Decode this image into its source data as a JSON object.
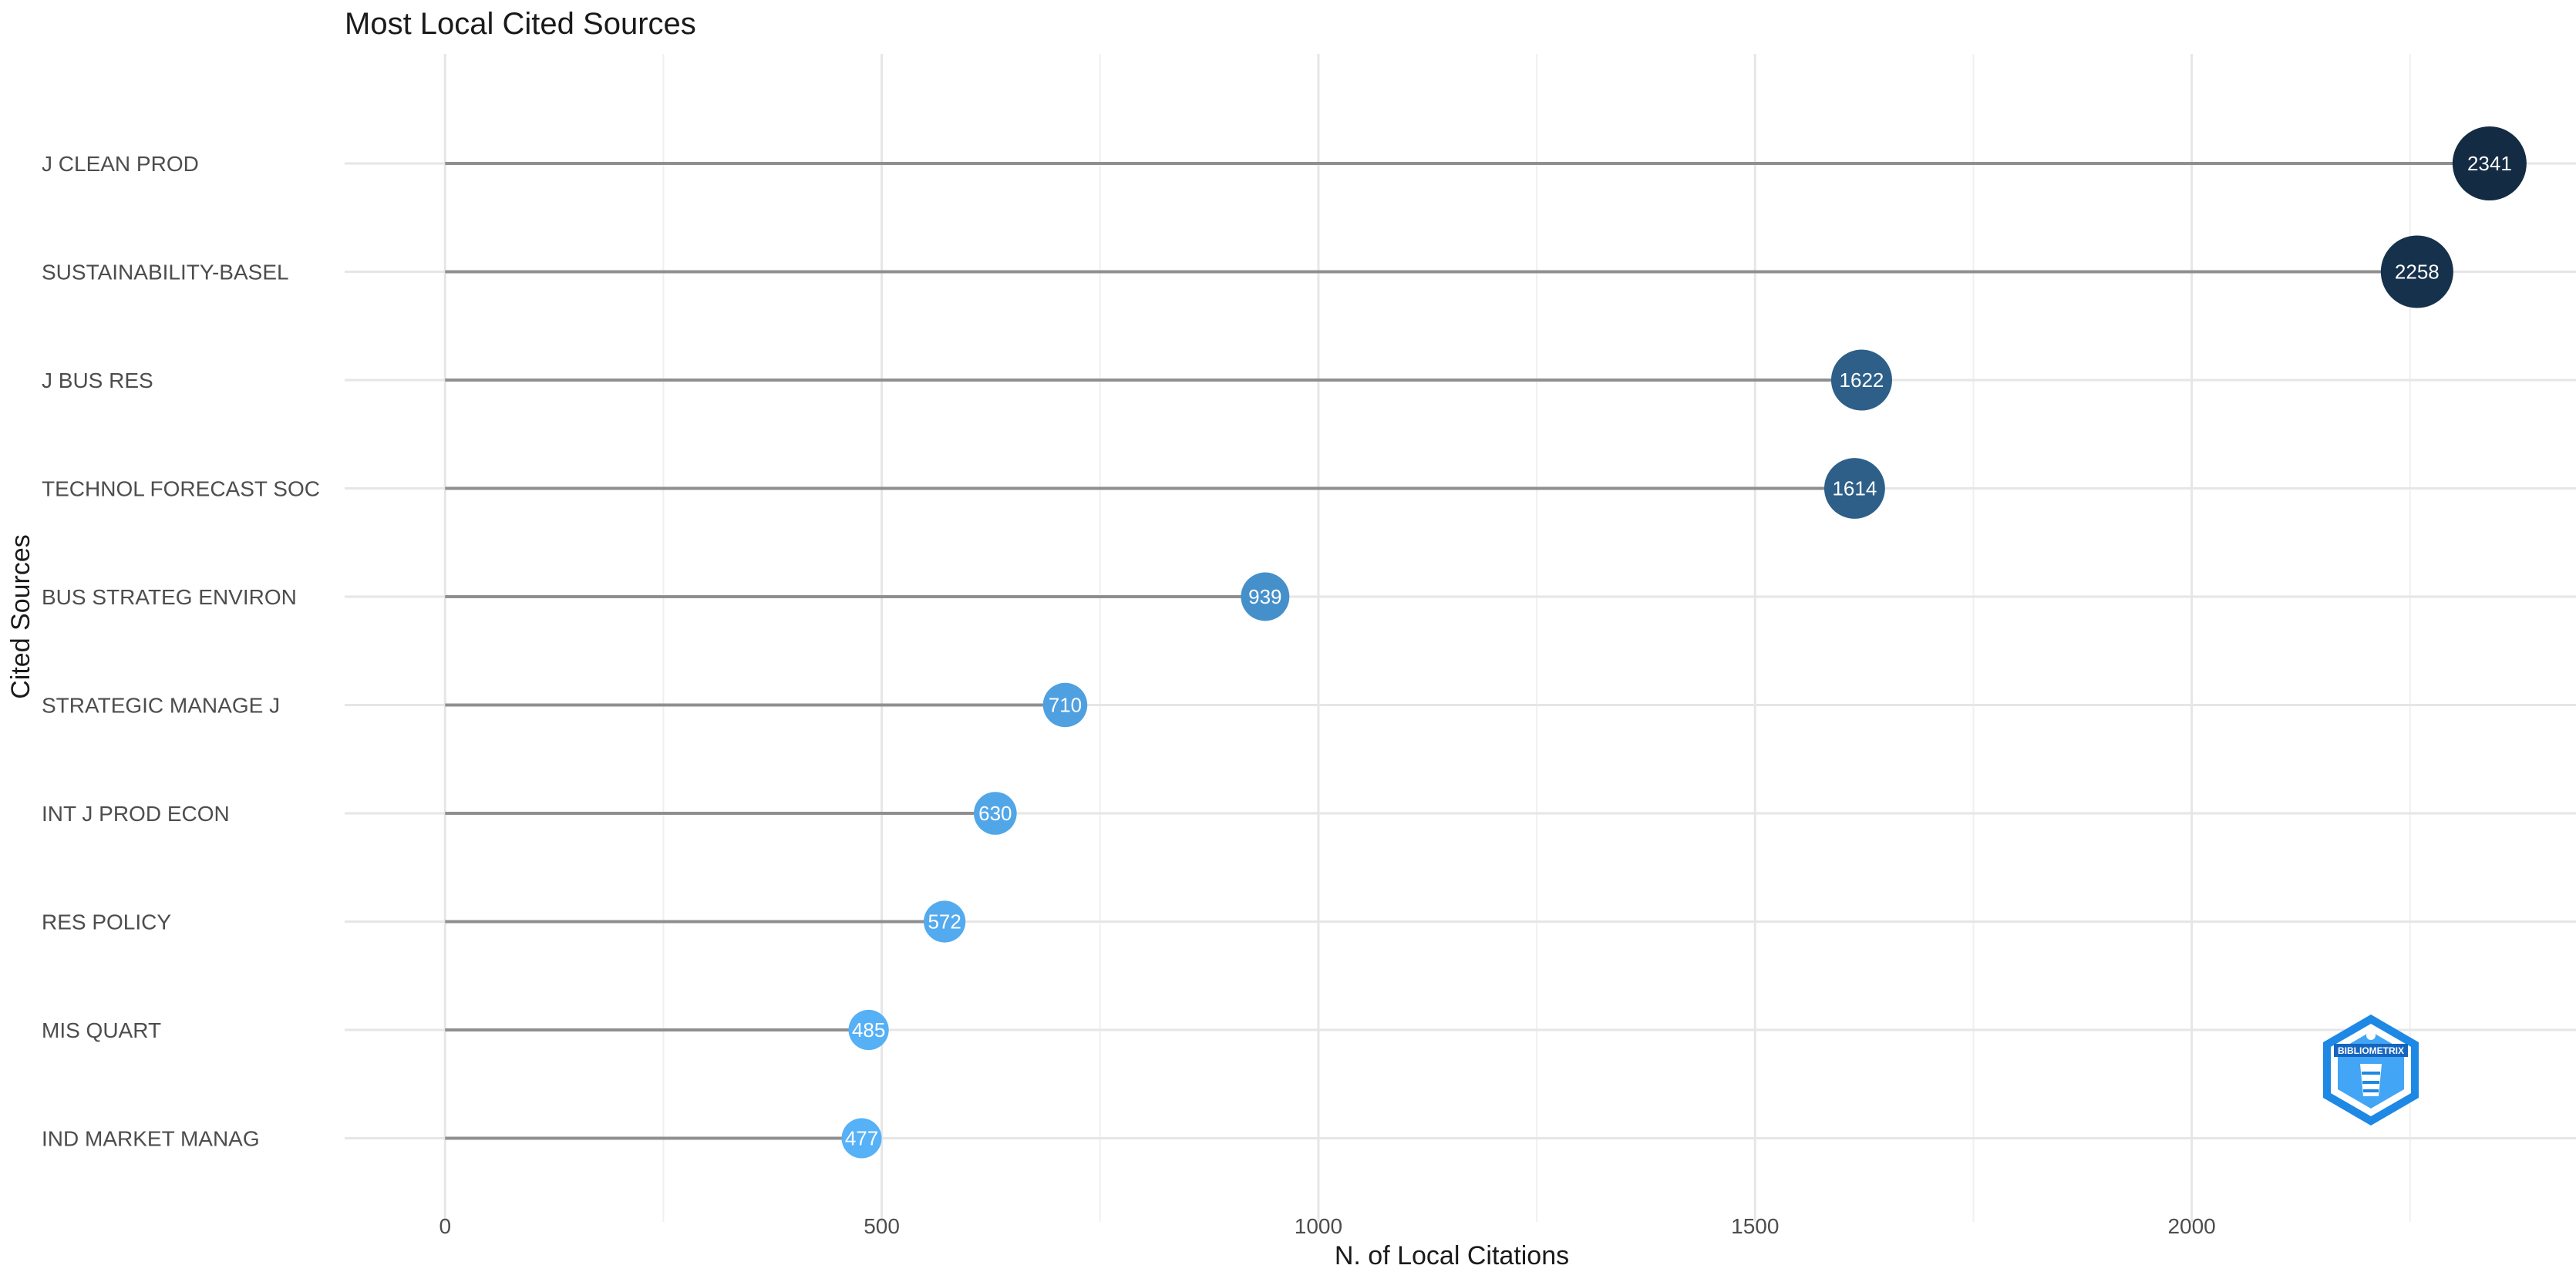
{
  "chart_data": {
    "type": "lollipop",
    "title": "Most Local Cited Sources",
    "xlabel": "N. of Local Citations",
    "ylabel": "Cited Sources",
    "xlim": [
      -115,
      2440
    ],
    "xticks": [
      0,
      500,
      1000,
      1500,
      2000
    ],
    "grid": true,
    "categories": [
      "J CLEAN PROD",
      "SUSTAINABILITY-BASEL",
      "J BUS RES",
      "TECHNOL FORECAST SOC",
      "BUS STRATEG ENVIRON",
      "STRATEGIC MANAGE J",
      "INT J PROD ECON",
      "RES POLICY",
      "MIS QUART",
      "IND MARKET MANAG"
    ],
    "values": [
      2341,
      2258,
      1622,
      1614,
      939,
      710,
      630,
      572,
      485,
      477
    ],
    "colors": {
      "stem": "#8f8f8f",
      "high": "#132b43",
      "low": "#56b1f7"
    }
  },
  "logo": {
    "icon": "bibliometrix-logo-icon",
    "text": "BIBLIOMETRIX"
  }
}
